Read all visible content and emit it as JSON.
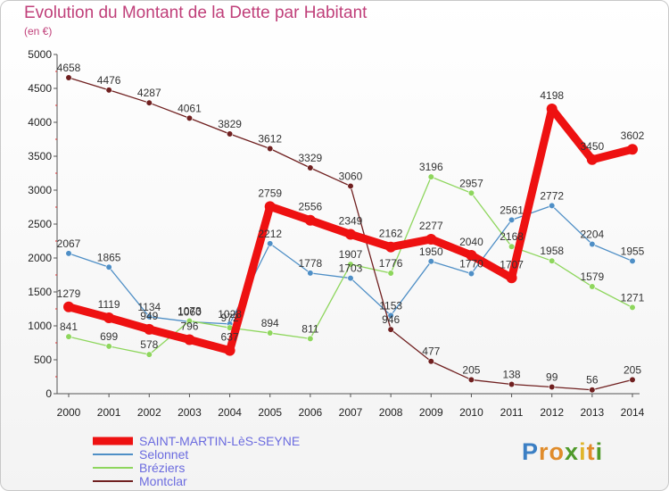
{
  "chart_data": {
    "type": "line",
    "title": "Evolution du Montant de la Dette par Habitant",
    "unit_label": "(en €)",
    "x": [
      "2000",
      "2001",
      "2002",
      "2003",
      "2004",
      "2005",
      "2006",
      "2007",
      "2008",
      "2009",
      "2010",
      "2011",
      "2012",
      "2013",
      "2014"
    ],
    "ylim": [
      0,
      5000
    ],
    "yticks": [
      0,
      500,
      1000,
      1500,
      2000,
      2500,
      3000,
      3500,
      4000,
      4500,
      5000
    ],
    "grid": false,
    "legend_position": "bottom-left",
    "series": [
      {
        "name": "SAINT-MARTIN-LèS-SEYNE",
        "color": "#ee1111",
        "emphasis": true,
        "values": [
          1279,
          1119,
          949,
          796,
          637,
          2759,
          2556,
          2349,
          2162,
          2277,
          2040,
          1707,
          4198,
          3450,
          3602
        ]
      },
      {
        "name": "Selonnet",
        "color": "#4f8fc6",
        "emphasis": false,
        "values": [
          2067,
          1865,
          1134,
          1060,
          1028,
          2212,
          1778,
          1703,
          1153,
          1950,
          1770,
          2561,
          2772,
          2204,
          1955
        ]
      },
      {
        "name": "Bréziers",
        "color": "#8ed65d",
        "emphasis": false,
        "values": [
          841,
          699,
          578,
          1073,
          972,
          894,
          811,
          1907,
          1776,
          3196,
          2957,
          2168,
          1958,
          1579,
          1271
        ]
      },
      {
        "name": "Montclar",
        "color": "#702020",
        "emphasis": false,
        "values": [
          4658,
          4476,
          4287,
          4061,
          3829,
          3612,
          3329,
          3060,
          946,
          477,
          205,
          138,
          99,
          56,
          205
        ]
      }
    ]
  },
  "brand": {
    "letters": [
      "P",
      "r",
      "o",
      "x",
      "i",
      "t",
      "i"
    ],
    "colors": [
      "#3b7fc4",
      "#e08c2b",
      "#e08c2b",
      "#4f9a2a",
      "#e0b52b",
      "#e08c2b",
      "#4f9a2a"
    ]
  }
}
